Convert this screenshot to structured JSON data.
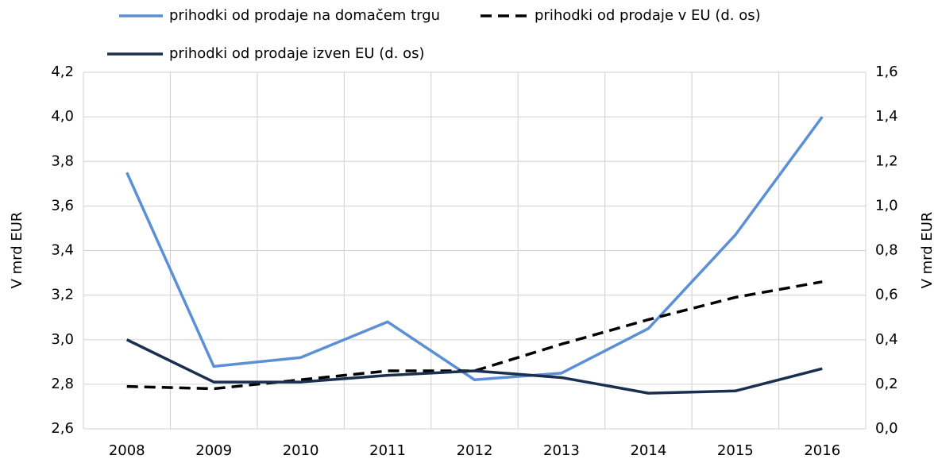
{
  "chart_data": {
    "type": "line",
    "categories": [
      "2008",
      "2009",
      "2010",
      "2011",
      "2012",
      "2013",
      "2014",
      "2015",
      "2016"
    ],
    "series": [
      {
        "name": "prihodki od prodaje na domačem trgu",
        "color": "#5b8fd6",
        "values": [
          3.75,
          2.88,
          2.92,
          3.08,
          2.82,
          2.85,
          3.05,
          3.47,
          4.0
        ]
      },
      {
        "name": "prihodki od prodaje v EU (d. os)",
        "color": "#000000",
        "dashed": true,
        "axis": "y2",
        "values": [
          0.19,
          0.18,
          0.22,
          0.26,
          0.26,
          0.38,
          0.49,
          0.59,
          0.66
        ]
      },
      {
        "name": "prihodki od prodaje izven EU (d. os)",
        "color": "#1a2f4f",
        "axis": "y2",
        "values": [
          0.4,
          0.21,
          0.21,
          0.24,
          0.26,
          0.23,
          0.16,
          0.17,
          0.27
        ]
      }
    ],
    "y_label": "V mrd EUR",
    "y2_label": "V mrd EUR",
    "ylim": [
      2.6,
      4.2
    ],
    "yticks": [
      {
        "value": 2.6,
        "label": "2,6"
      },
      {
        "value": 2.8,
        "label": "2,8"
      },
      {
        "value": 3.0,
        "label": "3,0"
      },
      {
        "value": 3.2,
        "label": "3,2"
      },
      {
        "value": 3.4,
        "label": "3,4"
      },
      {
        "value": 3.6,
        "label": "3,6"
      },
      {
        "value": 3.8,
        "label": "3,8"
      },
      {
        "value": 4.0,
        "label": "4,0"
      },
      {
        "value": 4.2,
        "label": "4,2"
      }
    ],
    "y2lim": [
      0,
      1.6
    ],
    "y2ticks": [
      {
        "value": 0,
        "label": "0,0"
      },
      {
        "value": 0.2,
        "label": "0,2"
      },
      {
        "value": 0.4,
        "label": "0,4"
      },
      {
        "value": 0.6,
        "label": "0,6"
      },
      {
        "value": 0.8,
        "label": "0,8"
      },
      {
        "value": 1.0,
        "label": "1,0"
      },
      {
        "value": 1.2,
        "label": "1,2"
      },
      {
        "value": 1.4,
        "label": "1,4"
      },
      {
        "value": 1.6,
        "label": "1,6"
      }
    ],
    "grid": true,
    "legend": "top"
  }
}
